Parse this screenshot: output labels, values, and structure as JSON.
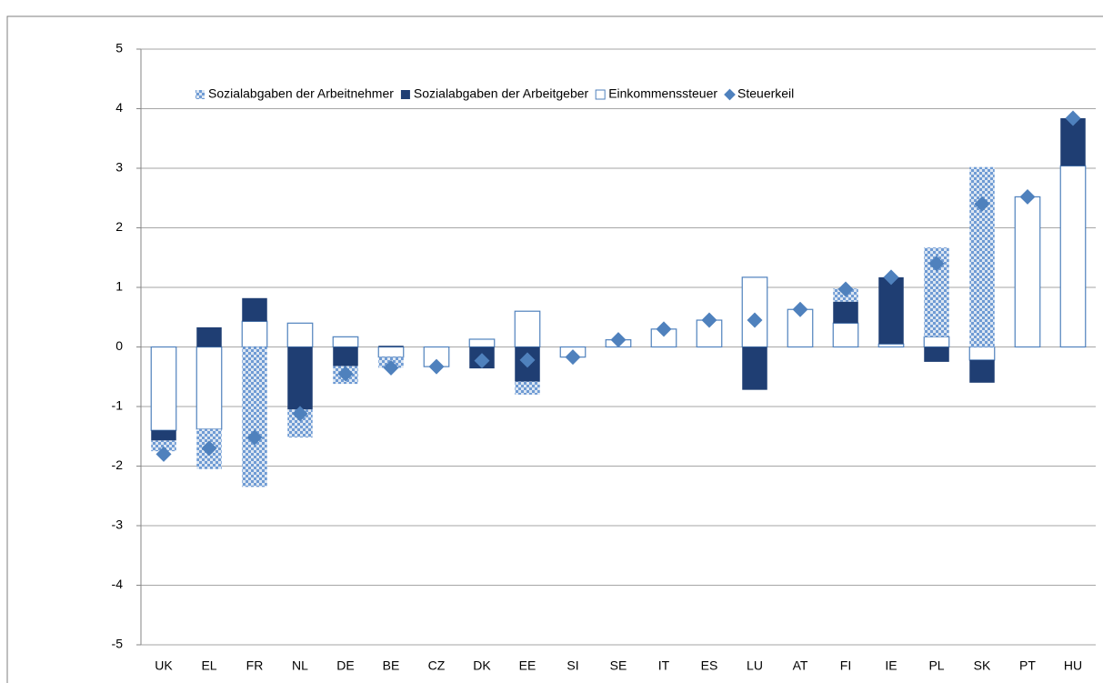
{
  "chart_data": {
    "type": "bar",
    "categories": [
      "UK",
      "EL",
      "FR",
      "NL",
      "DE",
      "BE",
      "CZ",
      "DK",
      "EE",
      "SI",
      "SE",
      "IT",
      "ES",
      "LU",
      "AT",
      "FI",
      "IE",
      "PL",
      "SK",
      "PT",
      "HU"
    ],
    "series": [
      {
        "name": "Sozialabgaben der Arbeitnehmer",
        "color": "#6f9bd4",
        "values": [
          -0.18,
          -0.67,
          -2.35,
          -0.47,
          -0.3,
          -0.18,
          0,
          0,
          -0.22,
          0,
          0,
          0,
          0,
          0,
          0,
          0.22,
          0,
          1.5,
          3.02,
          0,
          0
        ]
      },
      {
        "name": "Sozialabgaben der Arbeitgeber",
        "color": "#1f3e73",
        "values": [
          -0.17,
          0.33,
          0.39,
          -1.05,
          -0.32,
          0.02,
          0,
          -0.36,
          -0.58,
          0,
          0,
          0,
          0,
          -0.72,
          0,
          0.36,
          1.12,
          -0.25,
          -0.38,
          0,
          0.8
        ]
      },
      {
        "name": "Einkommenssteuer",
        "color": "#4f81bd",
        "values": [
          -1.4,
          -1.38,
          0.43,
          0.4,
          0.17,
          -0.17,
          -0.33,
          0.13,
          0.6,
          -0.17,
          0.12,
          0.3,
          0.45,
          1.17,
          0.63,
          0.4,
          0.05,
          0.17,
          -0.22,
          2.52,
          3.04
        ]
      },
      {
        "name": "Steuerkeil",
        "type": "marker",
        "color": "#4f81bd",
        "values": [
          -1.8,
          -1.7,
          -1.52,
          -1.12,
          -0.45,
          -0.35,
          -0.33,
          -0.23,
          -0.22,
          -0.17,
          0.12,
          0.3,
          0.45,
          0.45,
          0.63,
          0.97,
          1.17,
          1.4,
          2.4,
          2.52,
          3.84
        ]
      }
    ],
    "ylim": [
      -5,
      5
    ],
    "yticks": [
      -5,
      -4,
      -3,
      -2,
      -1,
      0,
      1,
      2,
      3,
      4,
      5
    ],
    "grid": true
  }
}
